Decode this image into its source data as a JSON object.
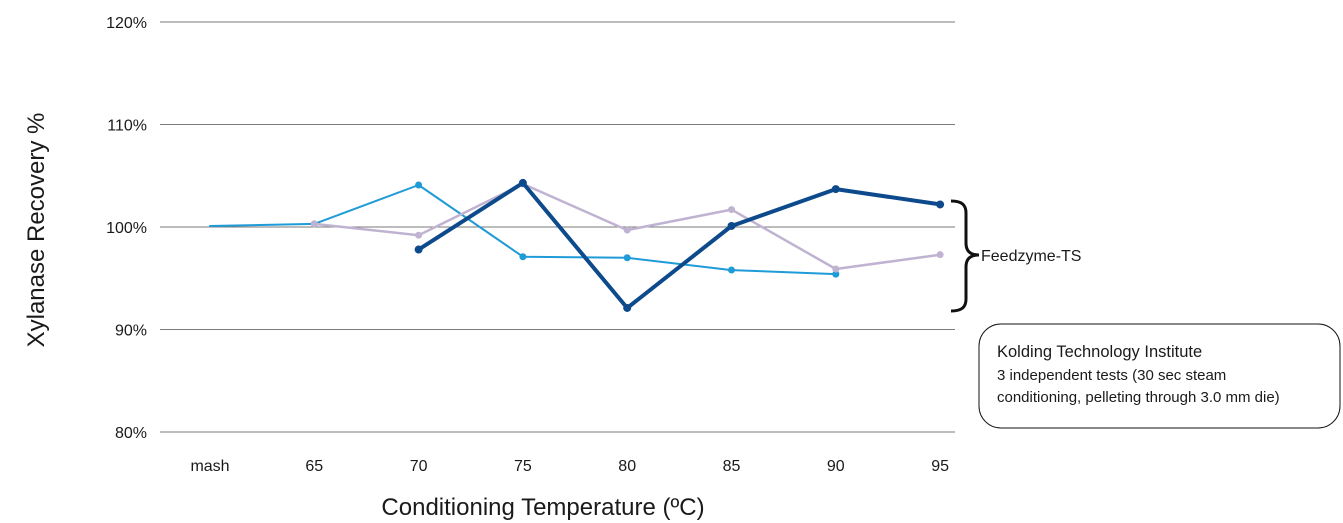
{
  "chart_data": {
    "type": "line",
    "categories": [
      "mash",
      "65",
      "70",
      "75",
      "80",
      "85",
      "90",
      "95"
    ],
    "xlabel": "Conditioning Temperature (ºC)",
    "ylabel": "Xylanase Recovery %",
    "ylim": [
      80,
      120
    ],
    "yticks": [
      80,
      90,
      100,
      110,
      120
    ],
    "ytick_labels": [
      "80%",
      "90%",
      "100%",
      "110%",
      "120%"
    ],
    "grid": true,
    "series": [
      {
        "color": "#1f9bd7",
        "values": [
          100.1,
          100.3,
          104.1,
          97.1,
          97.0,
          95.8,
          95.4,
          null
        ]
      },
      {
        "color": "#c0b3d1",
        "values": [
          null,
          100.3,
          99.2,
          104.2,
          99.7,
          101.7,
          95.9,
          97.3
        ]
      },
      {
        "color": "#0d4a8c",
        "values": [
          null,
          null,
          97.8,
          104.3,
          92.1,
          100.1,
          103.7,
          102.2
        ]
      }
    ],
    "annotation": {
      "text": "Feedzyme-TS"
    },
    "note": {
      "lines": [
        "Kolding Technology Institute",
        "3 independent tests (30 sec steam",
        "conditioning, pelleting through 3.0 mm die)"
      ]
    }
  }
}
